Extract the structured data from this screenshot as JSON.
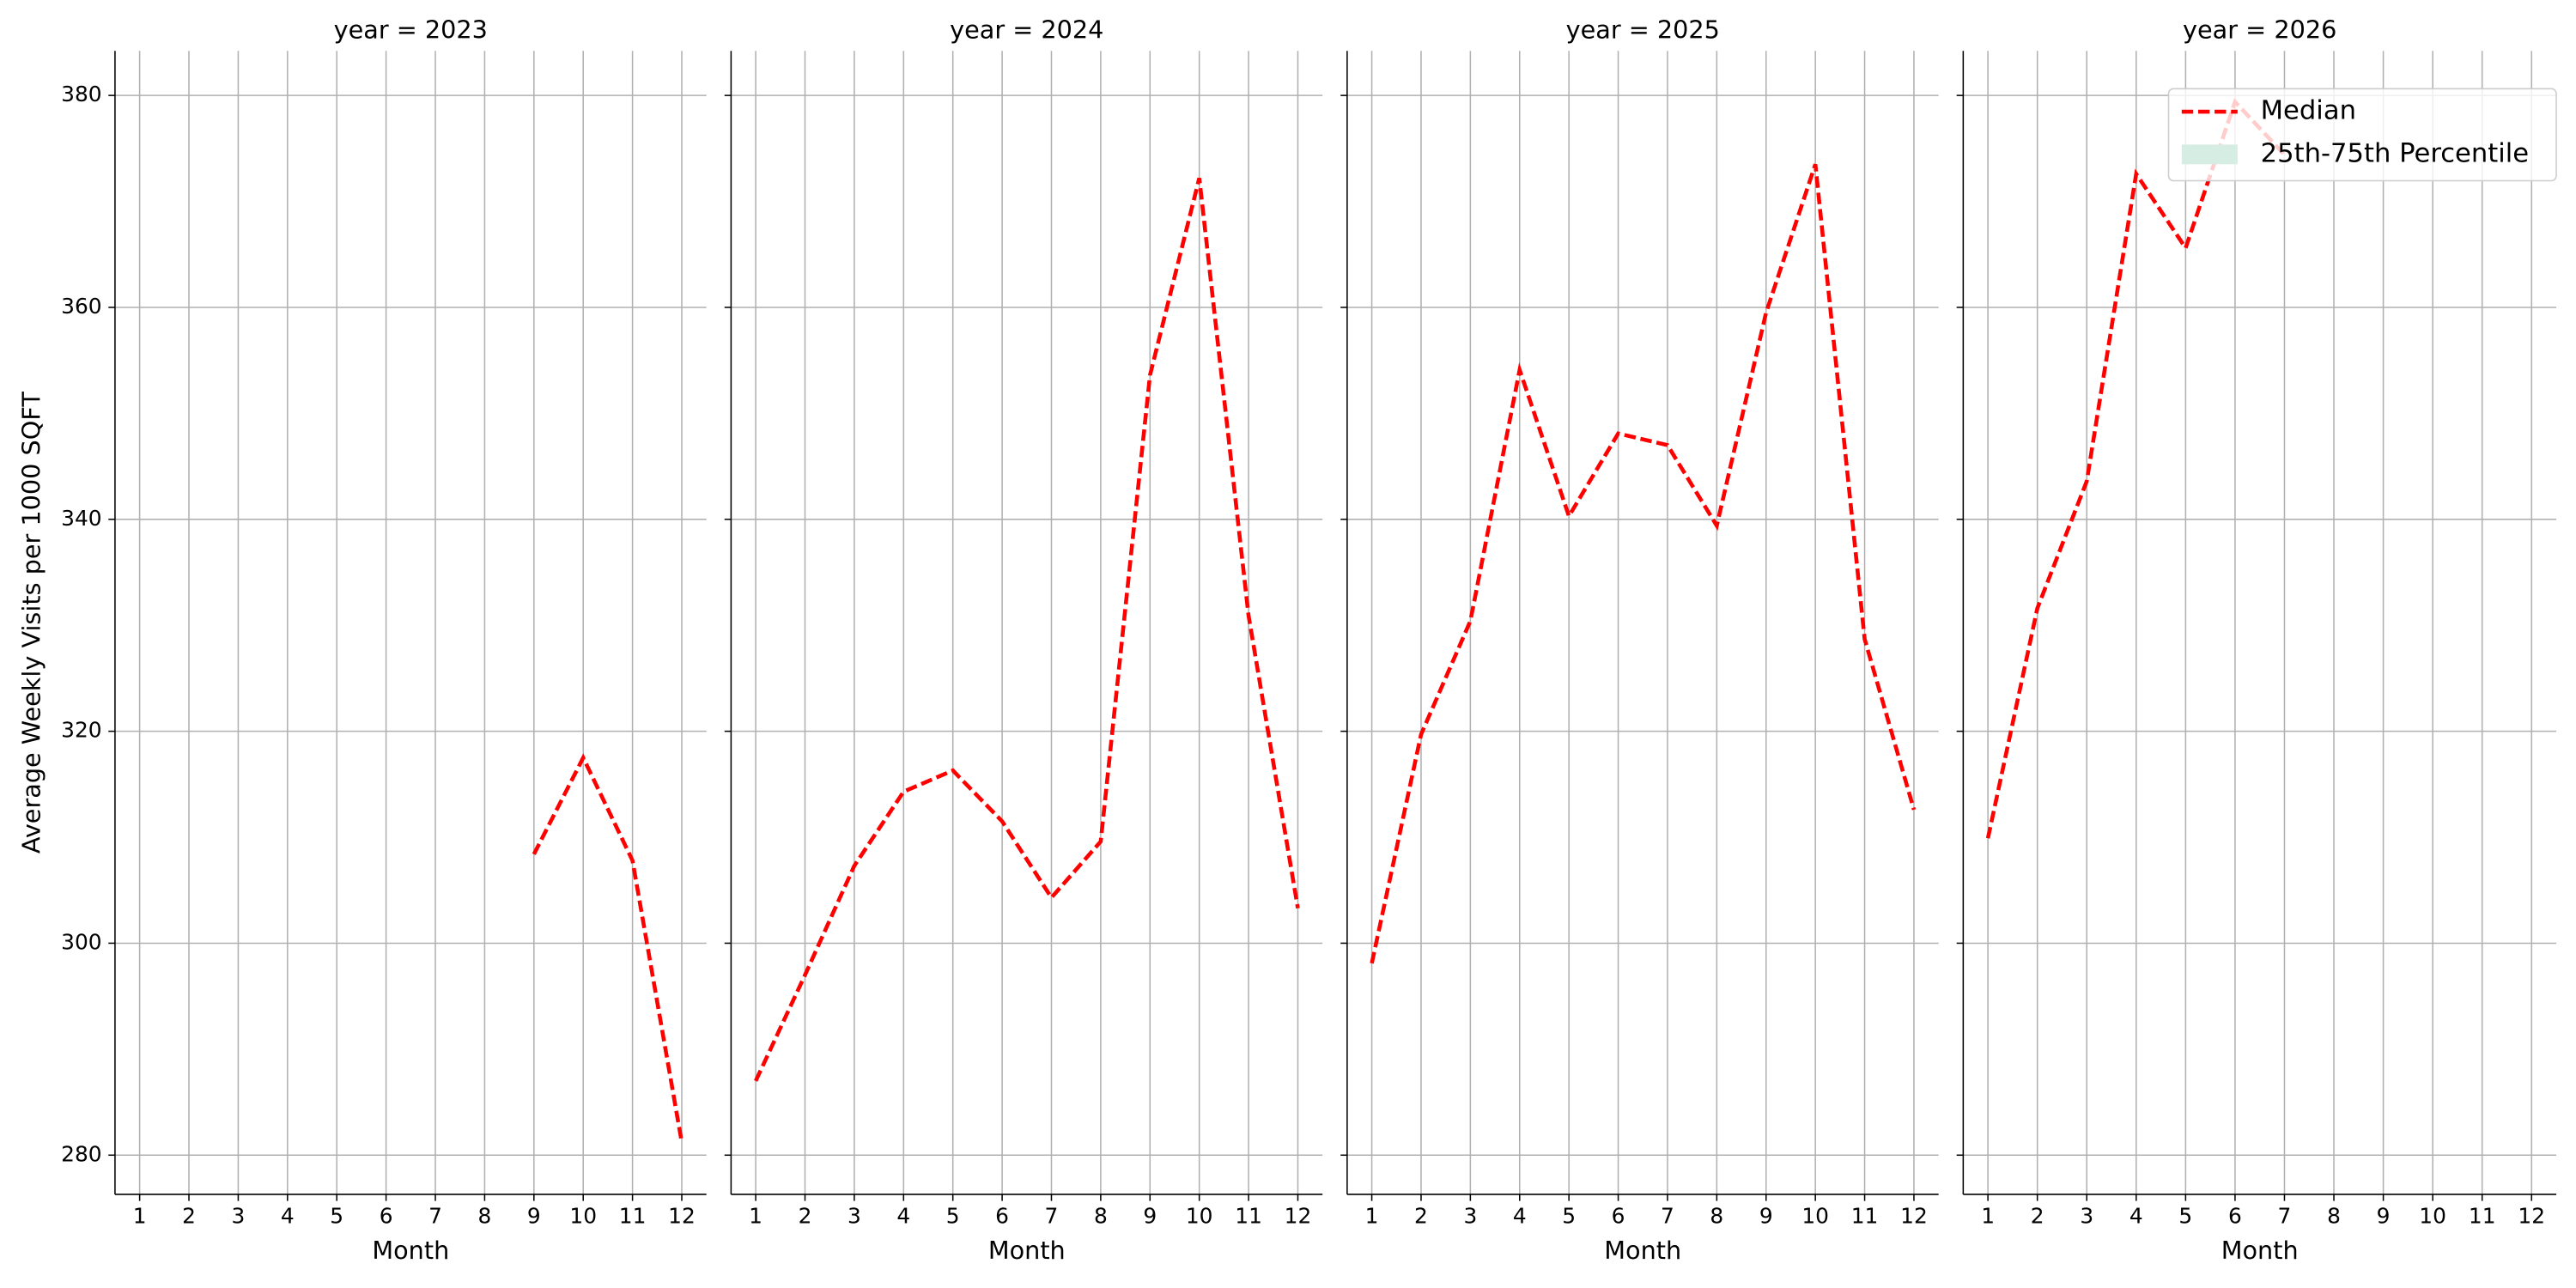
{
  "chart_data": [
    {
      "type": "line",
      "title": "year = 2023",
      "xlabel": "Month",
      "ylabel": "Average Weekly Visits per 1000 SQFT",
      "x": [
        1,
        2,
        3,
        4,
        5,
        6,
        7,
        8,
        9,
        10,
        11,
        12
      ],
      "series": [
        {
          "name": "Median",
          "color": "#ff0000",
          "values": [
            null,
            null,
            null,
            null,
            null,
            null,
            null,
            null,
            308.4,
            317.5,
            307.8,
            281.2
          ]
        }
      ],
      "xlim": [
        0.5,
        12.5
      ],
      "xticks": [
        1,
        2,
        3,
        4,
        5,
        6,
        7,
        8,
        9,
        10,
        11,
        12
      ],
      "ylim": [
        276.3,
        384.2
      ],
      "yticks": [
        280,
        300,
        320,
        340,
        360,
        380
      ],
      "grid": true
    },
    {
      "type": "line",
      "title": "year = 2024",
      "xlabel": "Month",
      "x": [
        1,
        2,
        3,
        4,
        5,
        6,
        7,
        8,
        9,
        10,
        11,
        12
      ],
      "series": [
        {
          "name": "Median",
          "color": "#ff0000",
          "values": [
            287.0,
            297.0,
            307.3,
            314.3,
            316.3,
            311.5,
            304.3,
            309.6,
            353.6,
            372.2,
            330.9,
            303.3
          ]
        }
      ],
      "xlim": [
        0.5,
        12.5
      ],
      "xticks": [
        1,
        2,
        3,
        4,
        5,
        6,
        7,
        8,
        9,
        10,
        11,
        12
      ],
      "ylim": [
        276.3,
        384.2
      ],
      "yticks": [
        280,
        300,
        320,
        340,
        360,
        380
      ],
      "grid": true
    },
    {
      "type": "line",
      "title": "year = 2025",
      "xlabel": "Month",
      "x": [
        1,
        2,
        3,
        4,
        5,
        6,
        7,
        8,
        9,
        10,
        11,
        12
      ],
      "series": [
        {
          "name": "Median",
          "color": "#ff0000",
          "values": [
            298.1,
            319.7,
            330.4,
            354.1,
            340.3,
            348.1,
            347.0,
            339.4,
            359.5,
            373.5,
            328.7,
            312.6
          ]
        }
      ],
      "xlim": [
        0.5,
        12.5
      ],
      "xticks": [
        1,
        2,
        3,
        4,
        5,
        6,
        7,
        8,
        9,
        10,
        11,
        12
      ],
      "ylim": [
        276.3,
        384.2
      ],
      "yticks": [
        280,
        300,
        320,
        340,
        360,
        380
      ],
      "grid": true
    },
    {
      "type": "line",
      "title": "year = 2026",
      "xlabel": "Month",
      "x": [
        1,
        2,
        3,
        4,
        5,
        6,
        7,
        8,
        9,
        10,
        11,
        12
      ],
      "series": [
        {
          "name": "Median",
          "color": "#ff0000",
          "values": [
            309.9,
            331.6,
            343.6,
            372.6,
            365.6,
            379.4,
            374.4,
            null,
            null,
            null,
            null,
            null
          ]
        },
        {
          "name": "25th-75th Percentile",
          "color": "#d6ede3",
          "values": [
            null,
            null,
            null,
            null,
            null,
            null,
            null,
            null,
            null,
            null,
            null,
            null
          ]
        }
      ],
      "xlim": [
        0.5,
        12.5
      ],
      "xticks": [
        1,
        2,
        3,
        4,
        5,
        6,
        7,
        8,
        9,
        10,
        11,
        12
      ],
      "ylim": [
        276.3,
        384.2
      ],
      "yticks": [
        280,
        300,
        320,
        340,
        360,
        380
      ],
      "grid": true,
      "legend": "upper right"
    }
  ]
}
